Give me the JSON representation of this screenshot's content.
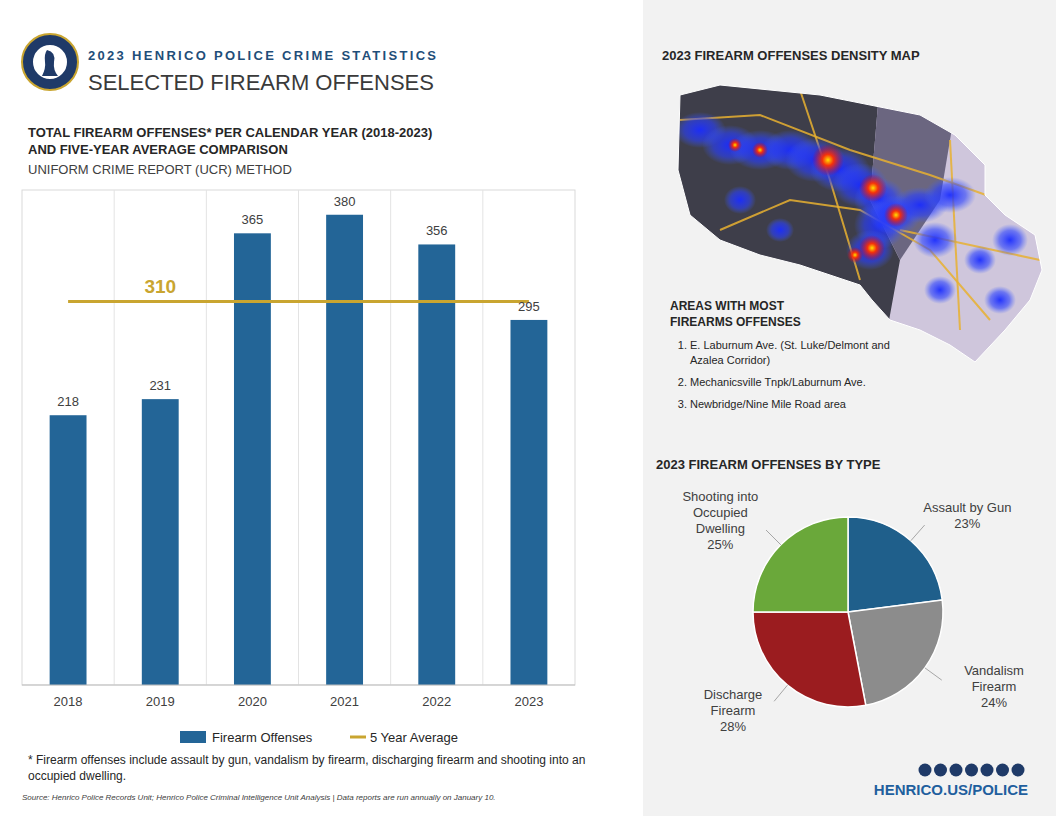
{
  "header": {
    "kicker": "2023 HENRICO POLICE CRIME STATISTICS",
    "title": "SELECTED FIREARM OFFENSES"
  },
  "chart_data": [
    {
      "type": "bar",
      "title": "TOTAL FIREARM OFFENSES* PER CALENDAR YEAR (2018-2023) AND FIVE-YEAR AVERAGE COMPARISON",
      "subtitle": "UNIFORM CRIME REPORT (UCR) METHOD",
      "categories": [
        "2018",
        "2019",
        "2020",
        "2021",
        "2022",
        "2023"
      ],
      "series": [
        {
          "name": "Firearm Offenses",
          "type": "bar",
          "color": "#236597",
          "values": [
            218,
            231,
            365,
            380,
            356,
            295
          ]
        }
      ],
      "average": {
        "name": "5 Year Average",
        "value": 310,
        "color": "#c9a530"
      },
      "ylim": [
        0,
        400
      ],
      "tick_labels": "x",
      "grid": true,
      "data_labels": true,
      "legend": "bottom"
    },
    {
      "type": "pie",
      "title": "2023 FIREARM OFFENSES BY TYPE",
      "categories": [
        "Assault by Gun",
        "Vandalism Firearm",
        "Discharge Firearm",
        "Shooting into Occupied Dwelling"
      ],
      "values": [
        23,
        24,
        28,
        25
      ],
      "value_labels": [
        "23%",
        "24%",
        "28%",
        "25%"
      ],
      "colors": [
        "#1f5f8b",
        "#8c8c8c",
        "#9b1c1f",
        "#6aa83a"
      ],
      "data_labels": true
    }
  ],
  "map": {
    "title": "2023 FIREARM OFFENSES DENSITY MAP",
    "areas_title": "AREAS WITH MOST FIREARMS OFFENSES",
    "areas": [
      "E. Laburnum Ave. (St. Luke/Delmont and Azalea Corridor)",
      "Mechanicsville Tnpk/Laburnum Ave.",
      "Newbridge/Nine Mile Road area"
    ]
  },
  "footnote": "* Firearm offenses include assault by gun, vandalism by firearm, discharging firearm and shooting into an occupied dwelling.",
  "source": "Source: Henrico Police Records Unit; Henrico Police Criminal Intelligence Unit Analysis | Data reports are run annually on January 10.",
  "footer": {
    "url": "HENRICO.US/POLICE"
  }
}
